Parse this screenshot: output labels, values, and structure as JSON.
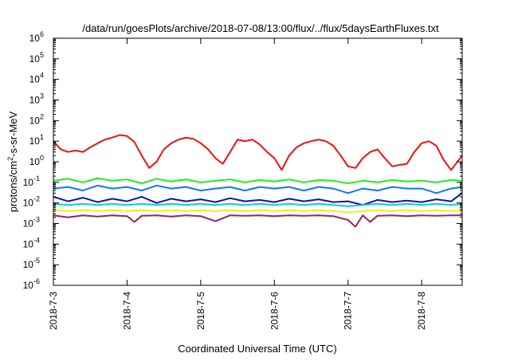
{
  "chart_data": {
    "type": "line",
    "title": "/data/run/goesPlots/archive/2018-07-08/13:00/flux/../flux/5daysEarthFluxes.txt",
    "xlabel": "Coordinated Universal Time (UTC)",
    "ylabel": "protons/cm2-s-sr-MeV",
    "ylabel_parts": {
      "before": "protons/cm",
      "sup": "2",
      "after": "-s-sr-MeV"
    },
    "x_tick_labels": [
      "2018-7-3",
      "2018-7-4",
      "2018-7-5",
      "2018-7-6",
      "2018-7-7",
      "2018-7-8"
    ],
    "x_range_days": [
      0,
      5.55
    ],
    "y_scale": "log",
    "y_range": [
      1e-06,
      1000000.0
    ],
    "y_ticks": [
      {
        "base": "10",
        "exp": "-6"
      },
      {
        "base": "10",
        "exp": "-5"
      },
      {
        "base": "10",
        "exp": "-4"
      },
      {
        "base": "10",
        "exp": "-3"
      },
      {
        "base": "10",
        "exp": "-2"
      },
      {
        "base": "10",
        "exp": "-1"
      },
      {
        "base": "10",
        "exp": "0"
      },
      {
        "base": "10",
        "exp": "1"
      },
      {
        "base": "10",
        "exp": "2"
      },
      {
        "base": "10",
        "exp": "3"
      },
      {
        "base": "10",
        "exp": "4"
      },
      {
        "base": "10",
        "exp": "5"
      },
      {
        "base": "10",
        "exp": "6"
      }
    ],
    "grid": false,
    "legend": "none",
    "series": [
      {
        "color": "#ee1111",
        "x": [
          0,
          0.1,
          0.2,
          0.3,
          0.4,
          0.5,
          0.6,
          0.7,
          0.8,
          0.9,
          1.0,
          1.1,
          1.2,
          1.3,
          1.4,
          1.5,
          1.6,
          1.7,
          1.8,
          1.9,
          2.0,
          2.1,
          2.2,
          2.3,
          2.4,
          2.5,
          2.6,
          2.7,
          2.8,
          2.9,
          3.0,
          3.1,
          3.2,
          3.3,
          3.4,
          3.5,
          3.6,
          3.7,
          3.8,
          3.9,
          4.0,
          4.1,
          4.2,
          4.3,
          4.4,
          4.5,
          4.6,
          4.7,
          4.8,
          4.9,
          5.0,
          5.1,
          5.2,
          5.3,
          5.4,
          5.55
        ],
        "y": [
          10,
          4,
          3,
          3.5,
          3,
          5,
          8,
          12,
          15,
          20,
          18,
          9,
          2,
          0.5,
          1,
          4,
          8,
          12,
          15,
          13,
          8,
          4,
          1.5,
          0.8,
          3,
          12,
          10,
          12,
          7,
          3,
          1.5,
          0.4,
          2,
          5,
          8,
          10,
          12,
          10,
          6,
          2,
          0.6,
          0.5,
          1.5,
          3,
          4,
          1.5,
          0.6,
          0.7,
          0.8,
          3,
          8,
          10,
          6,
          1.2,
          0.4,
          2
        ]
      },
      {
        "color": "#22ee22",
        "x": [
          0,
          0.2,
          0.4,
          0.6,
          0.8,
          1.0,
          1.2,
          1.4,
          1.6,
          1.8,
          2.0,
          2.2,
          2.4,
          2.6,
          2.8,
          3.0,
          3.2,
          3.4,
          3.6,
          3.8,
          4.0,
          4.2,
          4.4,
          4.6,
          4.8,
          5.0,
          5.2,
          5.4,
          5.55
        ],
        "y": [
          0.12,
          0.15,
          0.1,
          0.16,
          0.12,
          0.14,
          0.09,
          0.15,
          0.11,
          0.14,
          0.1,
          0.12,
          0.14,
          0.1,
          0.13,
          0.11,
          0.14,
          0.1,
          0.13,
          0.12,
          0.09,
          0.12,
          0.1,
          0.13,
          0.11,
          0.12,
          0.1,
          0.13,
          0.12
        ]
      },
      {
        "color": "#1177ee",
        "x": [
          0,
          0.2,
          0.4,
          0.6,
          0.8,
          1.0,
          1.2,
          1.4,
          1.6,
          1.8,
          2.0,
          2.2,
          2.4,
          2.6,
          2.8,
          3.0,
          3.2,
          3.4,
          3.6,
          3.8,
          4.0,
          4.2,
          4.4,
          4.6,
          4.8,
          5.0,
          5.2,
          5.4,
          5.55
        ],
        "y": [
          0.05,
          0.06,
          0.04,
          0.07,
          0.05,
          0.06,
          0.04,
          0.07,
          0.05,
          0.06,
          0.04,
          0.05,
          0.06,
          0.04,
          0.06,
          0.05,
          0.06,
          0.04,
          0.06,
          0.05,
          0.03,
          0.05,
          0.04,
          0.06,
          0.05,
          0.05,
          0.03,
          0.05,
          0.06
        ]
      },
      {
        "color": "#1111aa",
        "x": [
          0,
          0.2,
          0.4,
          0.6,
          0.8,
          1.0,
          1.2,
          1.4,
          1.6,
          1.8,
          2.0,
          2.2,
          2.4,
          2.6,
          2.8,
          3.0,
          3.2,
          3.4,
          3.6,
          3.8,
          4.0,
          4.2,
          4.4,
          4.6,
          4.8,
          5.0,
          5.2,
          5.4,
          5.55
        ],
        "y": [
          0.02,
          0.012,
          0.018,
          0.011,
          0.016,
          0.012,
          0.02,
          0.01,
          0.016,
          0.012,
          0.015,
          0.011,
          0.017,
          0.012,
          0.014,
          0.011,
          0.016,
          0.012,
          0.015,
          0.011,
          0.012,
          0.008,
          0.014,
          0.011,
          0.013,
          0.011,
          0.015,
          0.012,
          0.03
        ]
      },
      {
        "color": "#11cccc",
        "x": [
          0,
          0.2,
          0.4,
          0.6,
          0.8,
          1.0,
          1.2,
          1.4,
          1.6,
          1.8,
          2.0,
          2.2,
          2.4,
          2.6,
          2.8,
          3.0,
          3.2,
          3.4,
          3.6,
          3.8,
          4.0,
          4.2,
          4.4,
          4.6,
          4.8,
          5.0,
          5.2,
          5.4,
          5.55
        ],
        "y": [
          0.009,
          0.008,
          0.009,
          0.008,
          0.009,
          0.008,
          0.009,
          0.008,
          0.009,
          0.008,
          0.009,
          0.008,
          0.009,
          0.008,
          0.009,
          0.008,
          0.009,
          0.008,
          0.009,
          0.008,
          0.007,
          0.008,
          0.009,
          0.008,
          0.009,
          0.008,
          0.009,
          0.008,
          0.009
        ]
      },
      {
        "color": "#eeee22",
        "x": [
          0,
          0.2,
          0.4,
          0.6,
          0.8,
          1.0,
          1.2,
          1.4,
          1.6,
          1.8,
          2.0,
          2.2,
          2.4,
          2.6,
          2.8,
          3.0,
          3.2,
          3.4,
          3.6,
          3.8,
          4.0,
          4.2,
          4.4,
          4.6,
          4.8,
          5.0,
          5.2,
          5.4,
          5.55
        ],
        "y": [
          0.0045,
          0.004,
          0.0045,
          0.004,
          0.0045,
          0.004,
          0.0045,
          0.004,
          0.0045,
          0.004,
          0.0045,
          0.004,
          0.0045,
          0.004,
          0.0045,
          0.004,
          0.0045,
          0.004,
          0.0045,
          0.004,
          0.0035,
          0.004,
          0.0045,
          0.004,
          0.0045,
          0.004,
          0.0045,
          0.004,
          0.0045
        ]
      },
      {
        "color": "#992266",
        "x": [
          0,
          0.2,
          0.4,
          0.6,
          0.8,
          1.0,
          1.1,
          1.2,
          1.4,
          1.6,
          1.8,
          2.0,
          2.2,
          2.4,
          2.6,
          2.8,
          3.0,
          3.2,
          3.4,
          3.6,
          3.8,
          4.0,
          4.1,
          4.2,
          4.3,
          4.4,
          4.6,
          4.8,
          5.0,
          5.2,
          5.4,
          5.55
        ],
        "y": [
          0.0025,
          0.002,
          0.0025,
          0.0022,
          0.0025,
          0.0023,
          0.0012,
          0.0024,
          0.0025,
          0.0022,
          0.0025,
          0.0023,
          0.0013,
          0.0025,
          0.0024,
          0.0025,
          0.0023,
          0.0025,
          0.0024,
          0.0025,
          0.0023,
          0.0015,
          0.0007,
          0.0025,
          0.0012,
          0.0024,
          0.0025,
          0.0023,
          0.0025,
          0.0024,
          0.0025,
          0.0025
        ]
      }
    ]
  }
}
